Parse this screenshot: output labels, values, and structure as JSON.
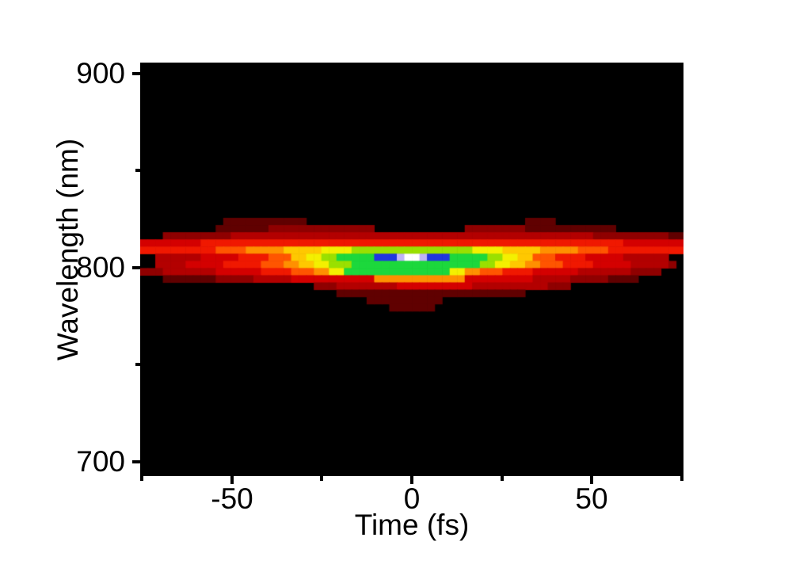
{
  "figure": {
    "kind": "spectrogram heatmap (FROG trace style)",
    "background_color": "#ffffff",
    "text_color": "#000000"
  },
  "chart_data": {
    "type": "heatmap",
    "title": "",
    "xlabel": "Time (fs)",
    "ylabel": "Wavelength (nm)",
    "xlim": [
      -75.55,
      75.55
    ],
    "ylim": [
      692.65,
      905.7
    ],
    "x_major_ticks": [
      -50,
      0,
      50
    ],
    "x_minor_ticks": [
      -75,
      -25,
      25,
      75
    ],
    "y_major_ticks": [
      900,
      800,
      700
    ],
    "y_minor_ticks": [
      850,
      750
    ],
    "x_tick_labels": [
      "-50",
      "0",
      "50"
    ],
    "y_tick_labels": [
      "900",
      "800",
      "700"
    ],
    "grid_lines": "off",
    "legend": "none",
    "background_color": "#000000",
    "peak": {
      "time_fs": 0,
      "wavelength_nm": 806,
      "color": "#ffffff"
    },
    "band": {
      "wavelength_span_nm": [
        780,
        826
      ],
      "time_span_fs": [
        -75.5,
        75.5
      ]
    },
    "colormap": [
      "#000000",
      "#2e0000",
      "#600000",
      "#8f0000",
      "#b30000",
      "#d40000",
      "#f01800",
      "#ff5500",
      "#ff9000",
      "#ffc800",
      "#f4f000",
      "#9ae000",
      "#1cd83c",
      "#2136e0",
      "#c0b2f8",
      "#ffffff"
    ],
    "grid": {
      "description": "Intensity grid, hex digit 0(black)-F(white) per cell; 72 time columns x 13 wavelength rows",
      "columns": 72,
      "rows": 13,
      "t0_fs": -75.55,
      "dt_fs": 2.099,
      "lambda0_nm": 825.7,
      "dlambda_nm": -3.694,
      "intensity_rows_hex": [
        "000000000002222222222200000000000000000000000000000222200000000000000000",
        "000000000022222223333333333333300000000000033333333222222222222000000000",
        "000333333333444444444444444444444444444444444444444444444444333333333322",
        "555555556666666666666666666666666666666666666666666666666666666655555555",
        "66666666667777888889999 9AAAABBBBBBBBBBBBBBBBAAAA9999988888777766666 66666",
        "004444445555566667779 9AABBCCCCCDDDEFFEDDDCCCCCBBAA99777666655555444444 00",
        "004444555556666677788 99AABBBCCCCCCCCCCCCCCCCCBBAA998877766665555544444 30",
        "333444444455555566667778 8AACCCCCCCCCCCCCCAA88777666655555544444443333000",
        "000222222233333444445555555555588888888888855555555544444333332222000000",
        "000000000000000000000003334444444455555555554444444444333000000000000000",
        "000000000000000000000000002222222222222222222222222000000000000000000000",
        "000000000000000000000000000000222222222200000000000000000000000000000000",
        "000000000000000000000000000000000222222000000000000000000000000000000000"
      ]
    }
  }
}
